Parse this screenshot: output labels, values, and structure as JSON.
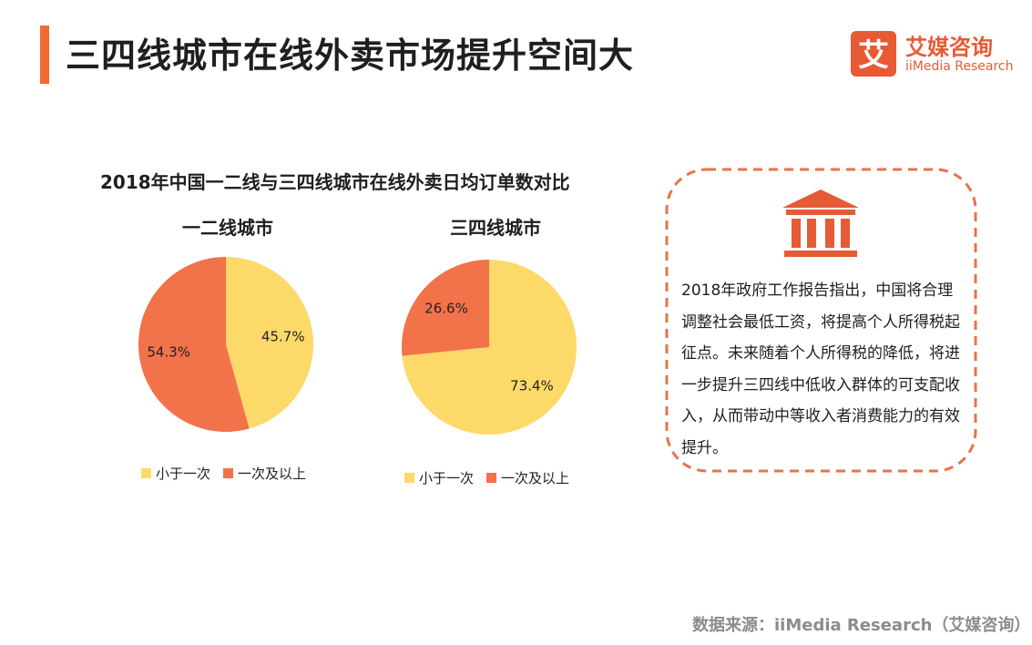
{
  "page": {
    "title": "三四线城市在线外卖市场提升空间大"
  },
  "logo": {
    "name": "艾媒咨询",
    "en": "iiMedia Research",
    "mark_char": "艾"
  },
  "colors": {
    "accent": "#f06a35",
    "yellow": "#fdd96a",
    "orange": "#f2724a",
    "logo": "#e85a33",
    "border": "#e8734a"
  },
  "chart_title": "2018年中国一二线与三四线城市在线外卖日均订单数对比",
  "chart_data": [
    {
      "type": "pie",
      "title": "一二线城市",
      "categories": [
        "小于一次",
        "一次及以上"
      ],
      "values": [
        45.7,
        54.3
      ],
      "labels": [
        "45.7%",
        "54.3%"
      ],
      "colors": [
        "#fdd96a",
        "#f2724a"
      ],
      "legend": "bottom"
    },
    {
      "type": "pie",
      "title": "三四线城市",
      "categories": [
        "小于一次",
        "一次及以上"
      ],
      "values": [
        73.4,
        26.6
      ],
      "labels": [
        "73.4%",
        "26.6%"
      ],
      "colors": [
        "#fdd96a",
        "#f2724a"
      ],
      "legend": "bottom"
    }
  ],
  "info": {
    "icon": "bank-building-icon",
    "text": "2018年政府工作报告指出，中国将合理调整社会最低工资，将提高个人所得税起征点。未来随着个人所得税的降低，将进一步提升三四线中低收入群体的可支配收入，从而带动中等收入者消费能力的有效提升。"
  },
  "source": "数据来源：iiMedia Research（艾媒咨询）"
}
